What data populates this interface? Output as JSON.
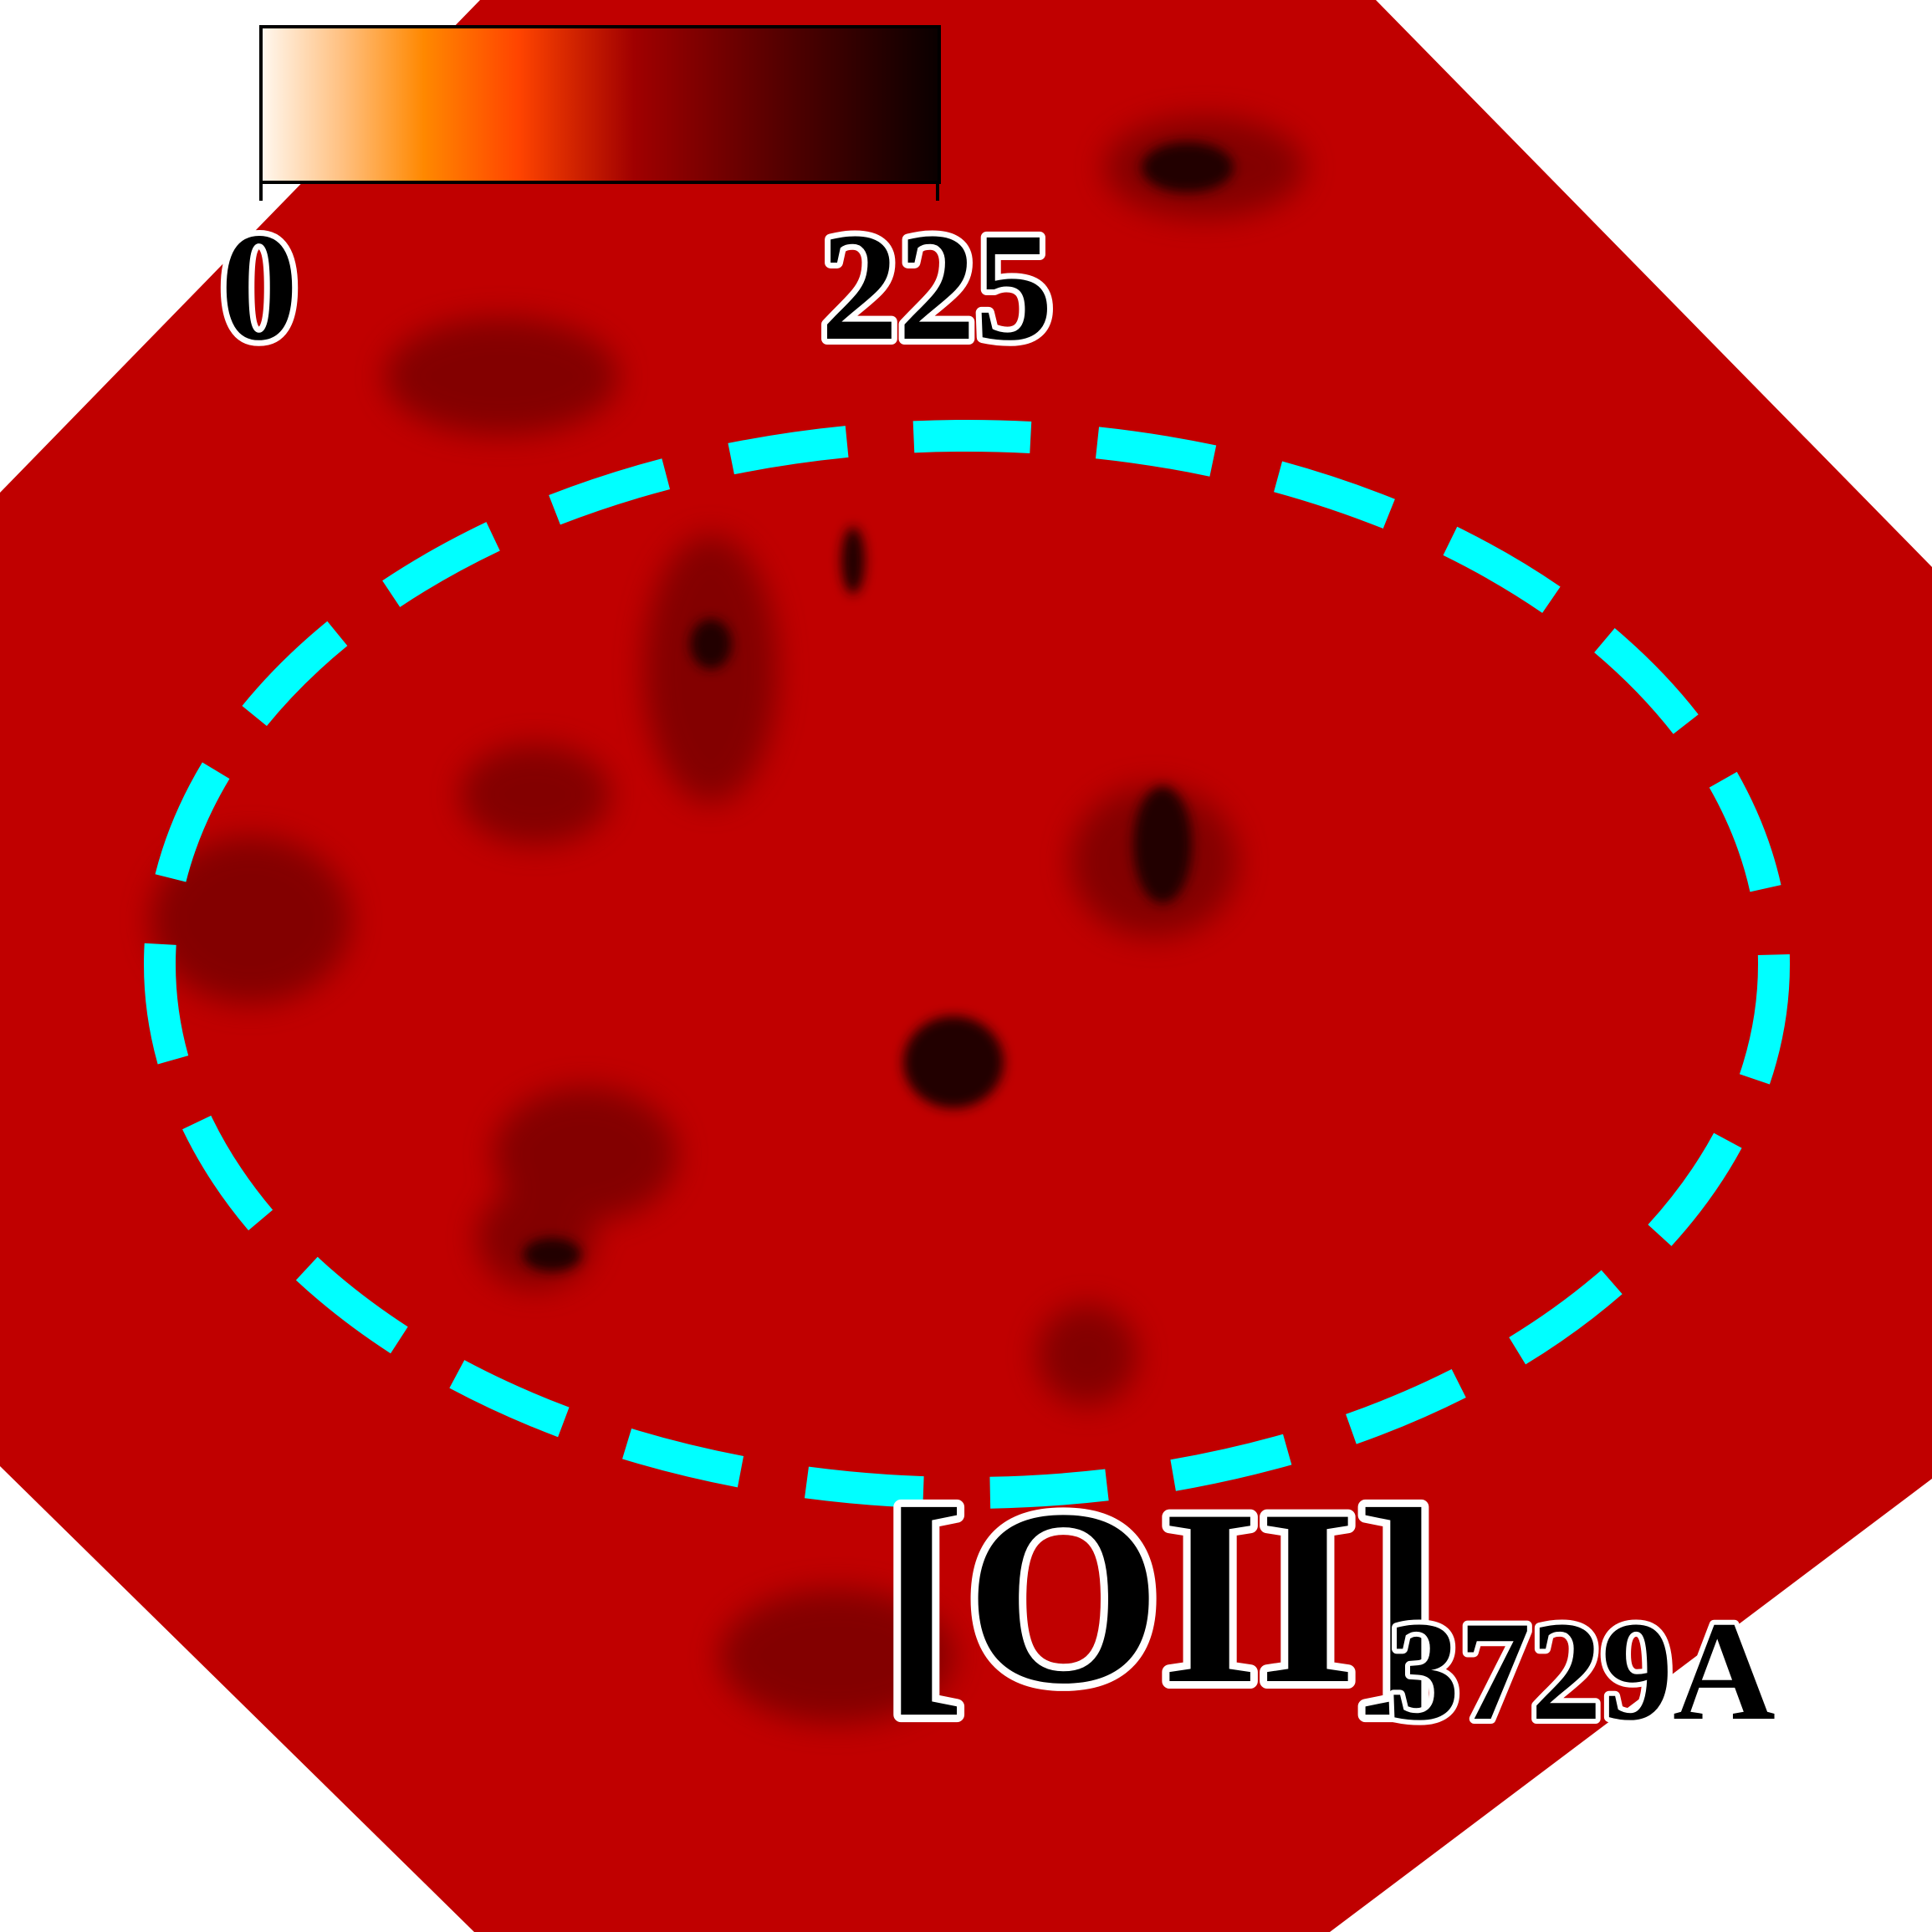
{
  "colorbar": {
    "ticks": [
      0,
      225
    ]
  },
  "label": {
    "main": "[OII]",
    "sub": "3729A"
  }
}
